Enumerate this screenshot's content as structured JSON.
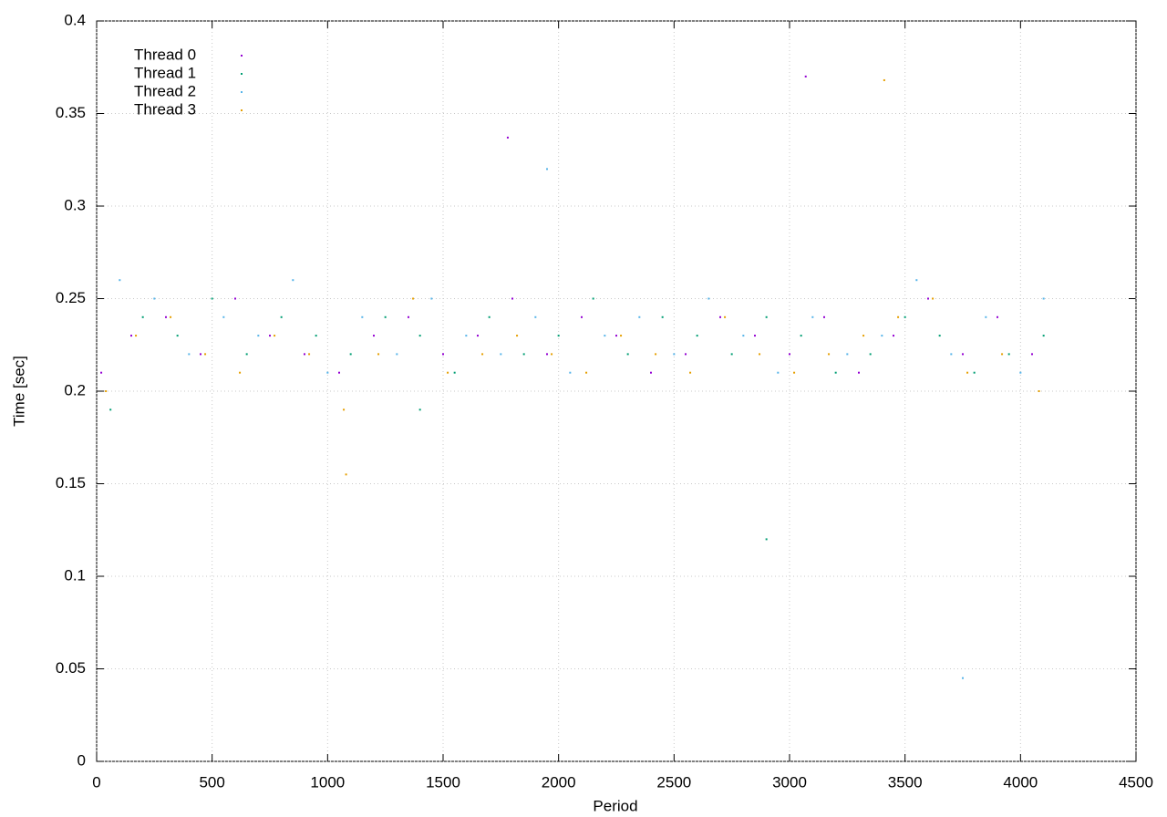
{
  "chart_data": {
    "type": "scatter",
    "xlabel": "Period",
    "ylabel": "Time [sec]",
    "xlim": [
      0,
      4500
    ],
    "ylim": [
      0,
      0.4
    ],
    "xticks": [
      0,
      500,
      1000,
      1500,
      2000,
      2500,
      3000,
      3500,
      4000,
      4500
    ],
    "yticks": [
      0,
      0.05,
      0.1,
      0.15,
      0.2,
      0.25,
      0.3,
      0.35,
      0.4
    ],
    "grid": true,
    "legend": "top left",
    "series": [
      {
        "name": "Thread 0",
        "color": "#9400d3",
        "x": [
          20,
          150,
          300,
          450,
          600,
          750,
          900,
          1050,
          1200,
          1350,
          1500,
          1650,
          1800,
          1950,
          2100,
          2250,
          2400,
          2550,
          2700,
          2850,
          3000,
          3150,
          3300,
          3450,
          3600,
          3750,
          3900,
          4050,
          1780,
          3070
        ],
        "values": [
          0.21,
          0.23,
          0.24,
          0.22,
          0.25,
          0.23,
          0.22,
          0.21,
          0.23,
          0.24,
          0.22,
          0.23,
          0.25,
          0.22,
          0.24,
          0.23,
          0.21,
          0.22,
          0.24,
          0.23,
          0.22,
          0.24,
          0.21,
          0.23,
          0.25,
          0.22,
          0.24,
          0.22,
          0.337,
          0.37
        ]
      },
      {
        "name": "Thread 1",
        "color": "#009e73",
        "x": [
          60,
          200,
          350,
          500,
          650,
          800,
          950,
          1100,
          1250,
          1400,
          1550,
          1700,
          1850,
          2000,
          2150,
          2300,
          2450,
          2600,
          2750,
          2900,
          3050,
          3200,
          3350,
          3500,
          3650,
          3800,
          3950,
          4100,
          1400,
          2900
        ],
        "values": [
          0.19,
          0.24,
          0.23,
          0.25,
          0.22,
          0.24,
          0.23,
          0.22,
          0.24,
          0.23,
          0.21,
          0.24,
          0.22,
          0.23,
          0.25,
          0.22,
          0.24,
          0.23,
          0.22,
          0.24,
          0.23,
          0.21,
          0.22,
          0.24,
          0.23,
          0.21,
          0.22,
          0.23,
          0.19,
          0.12
        ]
      },
      {
        "name": "Thread 2",
        "color": "#56b4e9",
        "x": [
          100,
          250,
          400,
          550,
          700,
          850,
          1000,
          1150,
          1300,
          1450,
          1600,
          1750,
          1900,
          2050,
          2200,
          2350,
          2500,
          2650,
          2800,
          2950,
          3100,
          3250,
          3400,
          3550,
          3700,
          3850,
          4000,
          4100,
          1950,
          3750
        ],
        "values": [
          0.26,
          0.25,
          0.22,
          0.24,
          0.23,
          0.26,
          0.21,
          0.24,
          0.22,
          0.25,
          0.23,
          0.22,
          0.24,
          0.21,
          0.23,
          0.24,
          0.22,
          0.25,
          0.23,
          0.21,
          0.24,
          0.22,
          0.23,
          0.26,
          0.22,
          0.24,
          0.21,
          0.25,
          0.32,
          0.045
        ]
      },
      {
        "name": "Thread 3",
        "color": "#e69f00",
        "x": [
          40,
          170,
          320,
          470,
          620,
          770,
          920,
          1070,
          1220,
          1370,
          1520,
          1670,
          1820,
          1970,
          2120,
          2270,
          2420,
          2570,
          2720,
          2870,
          3020,
          3170,
          3320,
          3470,
          3620,
          3770,
          3920,
          4080,
          3410,
          1080
        ],
        "values": [
          0.2,
          0.23,
          0.24,
          0.22,
          0.21,
          0.23,
          0.22,
          0.19,
          0.22,
          0.25,
          0.21,
          0.22,
          0.23,
          0.22,
          0.21,
          0.23,
          0.22,
          0.21,
          0.24,
          0.22,
          0.21,
          0.22,
          0.23,
          0.24,
          0.25,
          0.21,
          0.22,
          0.2,
          0.368,
          0.155
        ]
      }
    ]
  }
}
